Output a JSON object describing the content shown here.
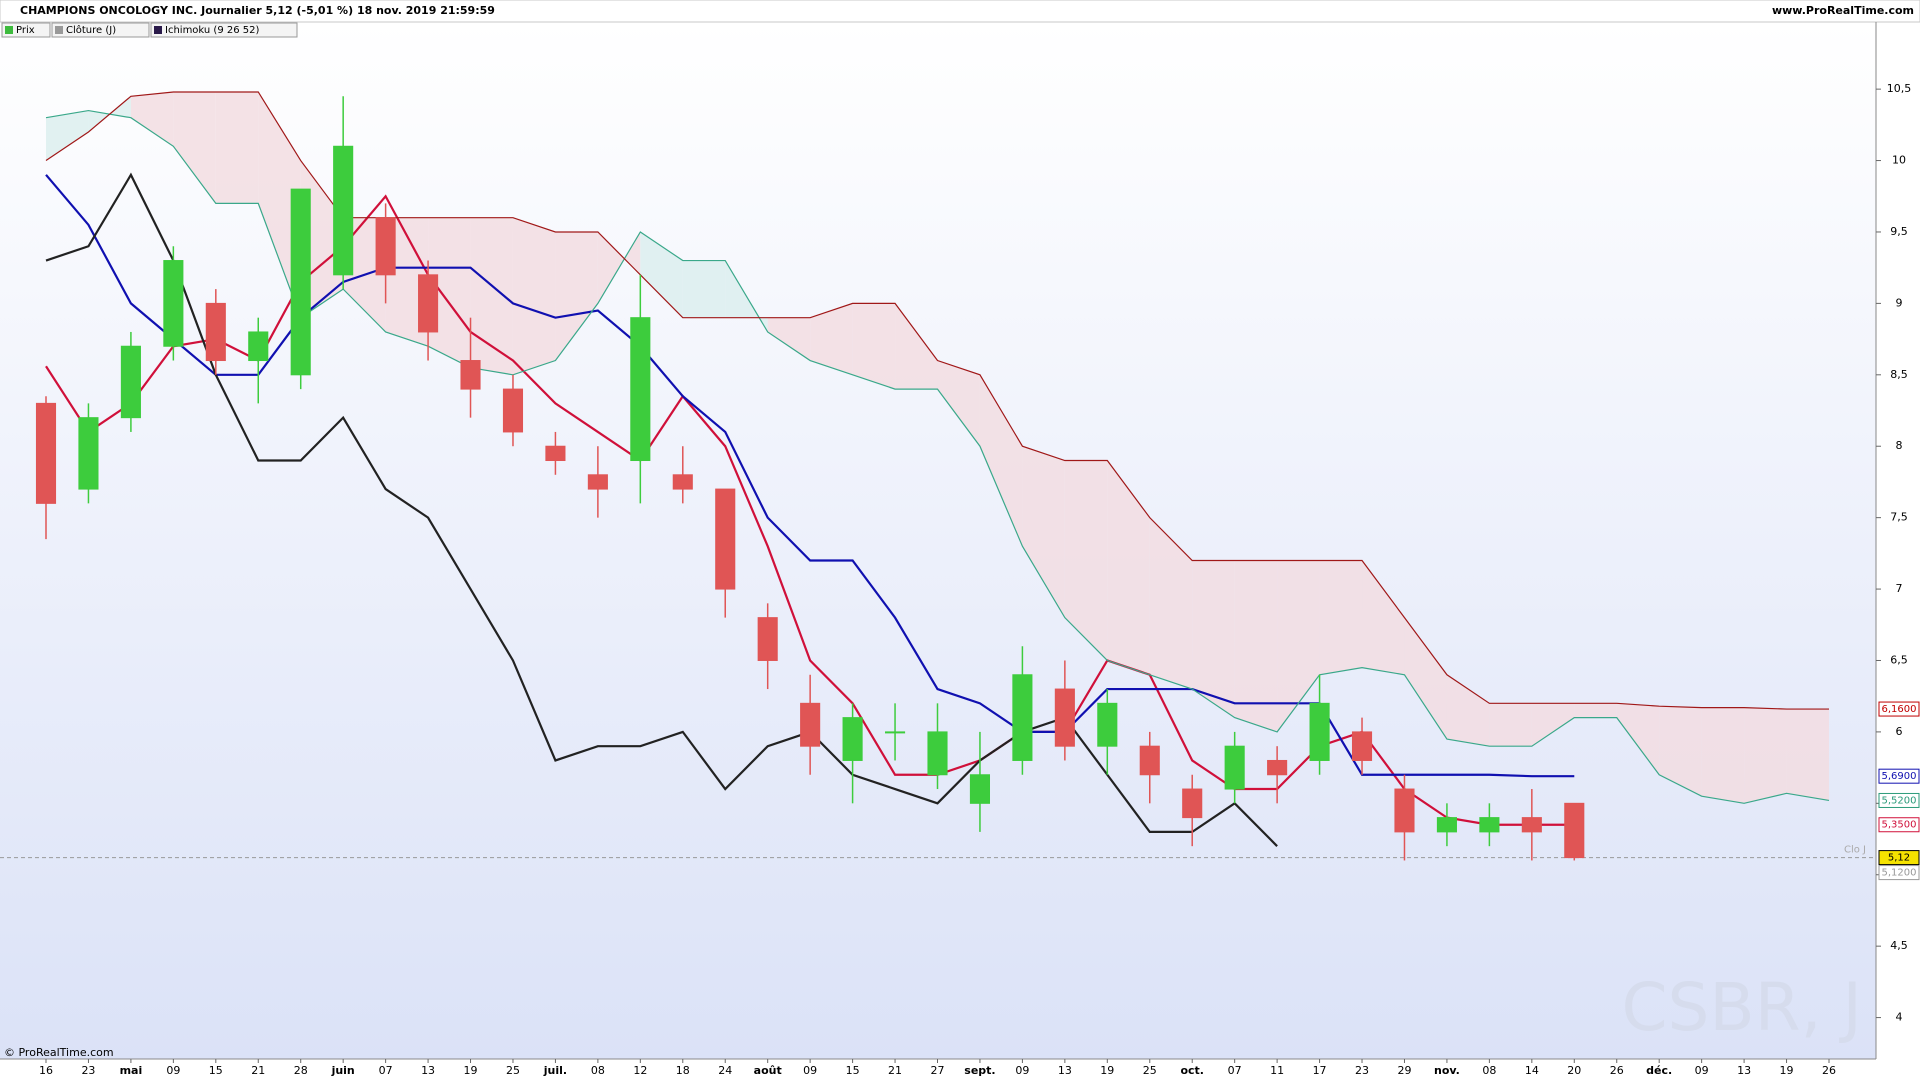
{
  "header": {
    "title": "CHAMPIONS ONCOLOGY INC. Journalier 5,12 (-5,01 %) 18 nov. 2019 21:59:59",
    "site": "www.ProRealTime.com",
    "copyright": "© ProRealTime.com"
  },
  "chart_data": {
    "type": "candlestick",
    "watermark": "CSBR, J",
    "legend": [
      {
        "name": "Prix",
        "color": "#3dbb3d"
      },
      {
        "name": "Clôture (J)",
        "color": "#999999"
      },
      {
        "name": "Ichimoku (9 26 52)",
        "color": "#2a1a4a"
      }
    ],
    "categories": [
      "16",
      "23",
      "mai",
      "09",
      "15",
      "21",
      "28",
      "juin",
      "07",
      "13",
      "19",
      "25",
      "juil.",
      "08",
      "12",
      "18",
      "24",
      "août",
      "09",
      "15",
      "21",
      "27",
      "sept.",
      "09",
      "13",
      "19",
      "25",
      "oct.",
      "07",
      "11",
      "17",
      "23",
      "29",
      "nov.",
      "08",
      "14",
      "20",
      "26",
      "déc.",
      "09",
      "13",
      "19",
      "26"
    ],
    "open": [
      8.3,
      7.7,
      8.2,
      8.7,
      9.0,
      8.6,
      8.5,
      9.2,
      9.6,
      9.2,
      8.6,
      8.4,
      8.0,
      7.8,
      7.9,
      7.8,
      7.7,
      6.8,
      6.2,
      5.8,
      6.0,
      5.7,
      5.5,
      5.8,
      6.3,
      5.9,
      5.9,
      5.6,
      5.6,
      5.8,
      5.8,
      6.0,
      5.6,
      5.3,
      5.3,
      5.4,
      5.5,
      null,
      null,
      null,
      null,
      null,
      null
    ],
    "high": [
      8.35,
      8.3,
      8.8,
      9.4,
      9.1,
      8.9,
      9.8,
      10.45,
      9.7,
      9.3,
      8.9,
      8.5,
      8.1,
      8.0,
      9.2,
      8.0,
      7.7,
      6.9,
      6.4,
      6.2,
      6.2,
      6.2,
      6.0,
      6.6,
      6.5,
      6.3,
      6.0,
      5.7,
      6.0,
      5.9,
      6.4,
      6.1,
      5.7,
      5.5,
      5.5,
      5.6,
      5.5,
      null,
      null,
      null,
      null,
      null,
      null
    ],
    "low": [
      7.35,
      7.6,
      8.1,
      8.6,
      8.5,
      8.3,
      8.4,
      9.1,
      9.0,
      8.6,
      8.2,
      8.0,
      7.8,
      7.5,
      7.6,
      7.6,
      6.8,
      6.3,
      5.7,
      5.5,
      5.8,
      5.6,
      5.3,
      5.7,
      5.8,
      5.7,
      5.5,
      5.2,
      5.5,
      5.5,
      5.7,
      5.7,
      5.1,
      5.2,
      5.2,
      5.1,
      5.1,
      null,
      null,
      null,
      null,
      null,
      null
    ],
    "close": [
      7.6,
      8.2,
      8.7,
      9.3,
      8.6,
      8.8,
      9.8,
      10.1,
      9.2,
      8.8,
      8.4,
      8.1,
      7.9,
      7.7,
      8.9,
      7.7,
      7.0,
      6.5,
      5.9,
      6.1,
      6.0,
      6.0,
      5.7,
      6.4,
      5.9,
      6.2,
      5.7,
      5.4,
      5.9,
      5.7,
      6.2,
      5.8,
      5.3,
      5.4,
      5.4,
      5.3,
      5.12,
      null,
      null,
      null,
      null,
      null,
      null
    ],
    "up_color": "#3dcc3d",
    "down_color": "#e05555",
    "series": [
      {
        "color": "#d0103a",
        "values": [
          8.56,
          8.1,
          8.3,
          8.7,
          8.75,
          8.6,
          9.15,
          9.4,
          9.75,
          9.2,
          8.8,
          8.6,
          8.3,
          8.1,
          7.9,
          8.35,
          8.0,
          7.3,
          6.5,
          6.2,
          5.7,
          5.7,
          5.8,
          6.0,
          6.0,
          6.5,
          6.4,
          5.8,
          5.6,
          5.6,
          5.9,
          6.0,
          5.6,
          5.4,
          5.35,
          5.35,
          5.35,
          null,
          null,
          null,
          null,
          null,
          null
        ]
      },
      {
        "color": "#1010b0",
        "values": [
          9.9,
          9.55,
          9.0,
          8.75,
          8.5,
          8.5,
          8.9,
          9.15,
          9.25,
          9.25,
          9.25,
          9.0,
          8.9,
          8.95,
          8.7,
          8.35,
          8.1,
          7.5,
          7.2,
          7.2,
          6.8,
          6.3,
          6.2,
          6.0,
          6.0,
          6.3,
          6.3,
          6.3,
          6.2,
          6.2,
          6.2,
          5.7,
          5.7,
          5.7,
          5.7,
          5.69,
          5.69,
          null,
          null,
          null,
          null,
          null,
          null
        ]
      },
      {
        "color": "#222222",
        "values": [
          9.3,
          9.4,
          9.9,
          9.3,
          8.5,
          7.9,
          7.9,
          8.2,
          7.7,
          7.5,
          7.0,
          6.5,
          5.8,
          5.9,
          5.9,
          6.0,
          5.6,
          5.9,
          6.0,
          5.7,
          5.6,
          5.5,
          5.8,
          6.0,
          6.1,
          5.7,
          5.3,
          5.3,
          5.5,
          5.2,
          null,
          null,
          null,
          null,
          null,
          null,
          null,
          null,
          null,
          null,
          null,
          null,
          null
        ]
      },
      {
        "color": "#3aa88a",
        "values": [
          10.3,
          10.35,
          10.3,
          10.1,
          9.7,
          9.7,
          8.9,
          9.1,
          8.8,
          8.7,
          8.55,
          8.5,
          8.6,
          9.0,
          9.5,
          9.3,
          9.3,
          8.8,
          8.6,
          8.5,
          8.4,
          8.4,
          8.0,
          7.3,
          6.8,
          6.5,
          6.4,
          6.3,
          6.1,
          6.0,
          6.4,
          6.45,
          6.4,
          5.95,
          5.9,
          5.9,
          6.1,
          6.1,
          5.7,
          5.55,
          5.5,
          5.57,
          5.52
        ]
      },
      {
        "color": "#a01818",
        "values": [
          10.0,
          10.2,
          10.45,
          10.48,
          10.48,
          10.48,
          10.0,
          9.6,
          9.6,
          9.6,
          9.6,
          9.6,
          9.5,
          9.5,
          9.2,
          8.9,
          8.9,
          8.9,
          8.9,
          9.0,
          9.0,
          8.6,
          8.5,
          8.0,
          7.9,
          7.9,
          7.5,
          7.2,
          7.2,
          7.2,
          7.2,
          7.2,
          6.8,
          6.4,
          6.2,
          6.2,
          6.2,
          6.2,
          6.18,
          6.17,
          6.17,
          6.16,
          6.16
        ]
      }
    ],
    "cloud_colors": [
      "#dceeee",
      "#f2dde2"
    ],
    "ylim": [
      3.71,
      10.97
    ],
    "yticks": [
      4,
      {
        "value": 4.5,
        "label": "4,5"
      },
      5,
      {
        "value": 5.5,
        "label": "5,5"
      },
      6,
      {
        "value": 6.5,
        "label": "6,5"
      },
      7,
      {
        "value": 7.5,
        "label": "7,5"
      },
      8,
      {
        "value": 8.5,
        "label": "8,5"
      },
      9,
      {
        "value": 9.5,
        "label": "9,5"
      },
      10,
      {
        "value": 10.5,
        "label": "10,5"
      }
    ],
    "close_line": {
      "value": 5.12,
      "label": "Clo J"
    },
    "last_labels": [
      {
        "value": 6.16,
        "label": "6,1600",
        "color": "#c00000",
        "bg": "#ffffff"
      },
      {
        "value": 5.69,
        "label": "5,6900",
        "color": "#1010b0",
        "bg": "#ffffff"
      },
      {
        "value": 5.52,
        "label": "5,5200",
        "color": "#2a9a7a",
        "bg": "#ffffff"
      },
      {
        "value": 5.35,
        "label": "5,3500",
        "color": "#d0103a",
        "bg": "#ffffff"
      },
      {
        "value": 5.12,
        "label": "5,12",
        "color": "#000000",
        "bg": "#f5e200"
      },
      {
        "value": 5.12,
        "label": "5,1200",
        "color": "#999999",
        "bg": "#ffffff"
      }
    ]
  }
}
